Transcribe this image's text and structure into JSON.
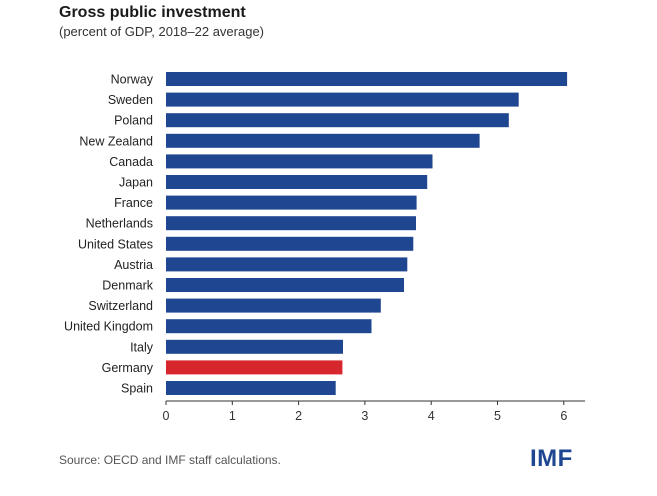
{
  "header": {
    "title": "Gross public investment",
    "subtitle": "(percent of GDP, 2018–22 average)"
  },
  "footer": {
    "source": "Source: OECD and IMF staff calculations.",
    "logo_text": "IMF"
  },
  "colors": {
    "bar": "#1f4690",
    "highlight": "#d7262c",
    "axis": "#333333",
    "logo": "#1f4690"
  },
  "chart_data": {
    "type": "bar",
    "orientation": "horizontal",
    "title": "Gross public investment",
    "subtitle": "(percent of GDP, 2018–22 average)",
    "categories": [
      "Norway",
      "Sweden",
      "Poland",
      "New Zealand",
      "Canada",
      "Japan",
      "France",
      "Netherlands",
      "United States",
      "Austria",
      "Denmark",
      "Switzerland",
      "United Kingdom",
      "Italy",
      "Germany",
      "Spain"
    ],
    "values": [
      6.05,
      5.32,
      5.17,
      4.73,
      4.02,
      3.94,
      3.78,
      3.77,
      3.73,
      3.64,
      3.59,
      3.24,
      3.1,
      2.67,
      2.66,
      2.56
    ],
    "highlight": "Germany",
    "xticks": [
      "0",
      "1",
      "2",
      "3",
      "4",
      "5",
      "6"
    ],
    "xlim": [
      0,
      6.2
    ],
    "xlabel": "",
    "ylabel": "",
    "grid": false,
    "legend": "none"
  }
}
